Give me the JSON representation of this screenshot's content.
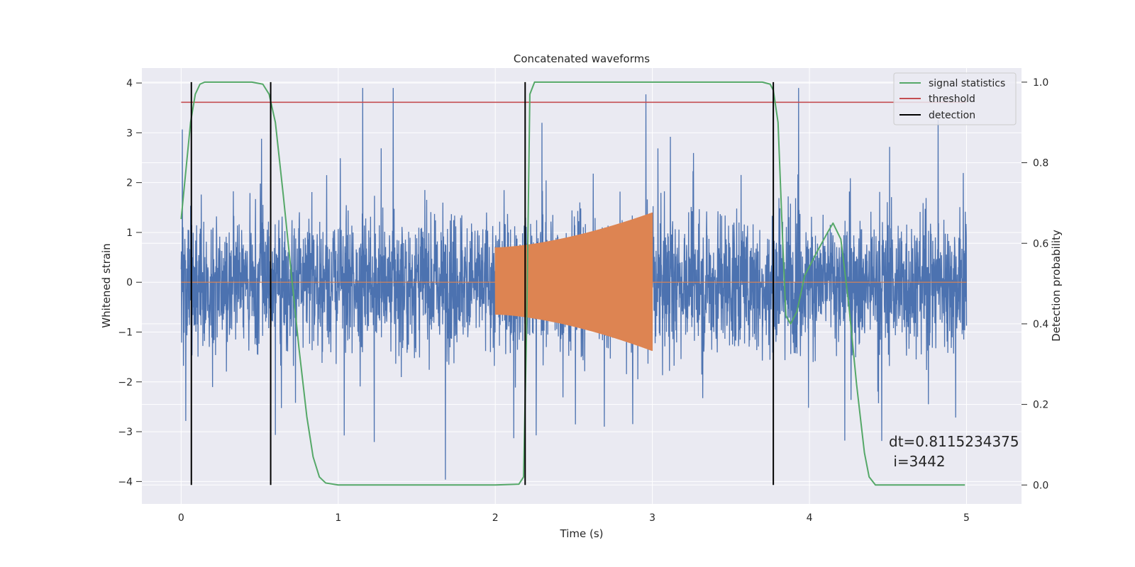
{
  "chart_data": {
    "type": "line",
    "title": "Concatenated waveforms",
    "xlabel": "Time (s)",
    "ylabel": "Whitened strain",
    "ylabel_right": "Detection probability",
    "xlim": [
      -0.25,
      5.35
    ],
    "ylim": [
      -4.45,
      4.3
    ],
    "ylim_right": [
      -0.047,
      1.035
    ],
    "xticks": [
      0,
      1,
      2,
      3,
      4,
      5
    ],
    "xtick_labels": [
      "0",
      "1",
      "2",
      "3",
      "4",
      "5"
    ],
    "yticks": [
      -4,
      -3,
      -2,
      -1,
      0,
      1,
      2,
      3,
      4
    ],
    "ytick_labels": [
      "−4",
      "−3",
      "−2",
      "−1",
      "0",
      "1",
      "2",
      "3",
      "4"
    ],
    "yticks_right": [
      0.0,
      0.2,
      0.4,
      0.6,
      0.8,
      1.0
    ],
    "ytick_labels_right": [
      "0.0",
      "0.2",
      "0.4",
      "0.6",
      "0.8",
      "1.0"
    ],
    "grid": true,
    "legend_position": "top-right",
    "colors": {
      "background": "#eaeaf2",
      "grid": "#ffffff",
      "strain": "#4c72b0",
      "template": "#dd8452",
      "signal_statistics": "#55a868",
      "threshold": "#c44e52",
      "detection": "#000000"
    },
    "series": [
      {
        "name": "",
        "axis": "left",
        "x_range": [
          0,
          5
        ],
        "envelope_typical": [
          -1.5,
          1.3
        ],
        "envelope_max": [
          -4.15,
          3.9
        ]
      },
      {
        "name": "",
        "axis": "left",
        "x_range": [
          0,
          5
        ],
        "chirp": {
          "x_start": 2.0,
          "x_end": 3.0,
          "amplitude_start_upper": 0.7,
          "amplitude_start_lower": -0.65,
          "amplitude_end_upper": 1.4,
          "amplitude_end_lower": -1.38
        }
      },
      {
        "name": "signal statistics",
        "axis": "right",
        "x": [
          0,
          0.03,
          0.06,
          0.09,
          0.12,
          0.15,
          0.2,
          0.3,
          0.45,
          0.52,
          0.56,
          0.6,
          0.65,
          0.7,
          0.75,
          0.8,
          0.84,
          0.88,
          0.92,
          1.0,
          1.5,
          2.0,
          2.15,
          2.18,
          2.2,
          2.22,
          2.25,
          2.3,
          2.5,
          3.0,
          3.5,
          3.7,
          3.75,
          3.77,
          3.8,
          3.83,
          3.85,
          3.88,
          3.92,
          3.97,
          4.05,
          4.12,
          4.15,
          4.2,
          4.25,
          4.3,
          4.35,
          4.38,
          4.42,
          4.5,
          4.99
        ],
        "y": [
          0.66,
          0.78,
          0.9,
          0.97,
          0.995,
          1.0,
          1.0,
          1.0,
          1.0,
          0.995,
          0.97,
          0.9,
          0.72,
          0.53,
          0.34,
          0.17,
          0.07,
          0.02,
          0.005,
          0.0,
          0.0,
          0.0,
          0.002,
          0.02,
          0.4,
          0.97,
          1.0,
          1.0,
          1.0,
          1.0,
          1.0,
          1.0,
          0.995,
          0.98,
          0.9,
          0.6,
          0.42,
          0.4,
          0.43,
          0.52,
          0.58,
          0.63,
          0.65,
          0.61,
          0.45,
          0.25,
          0.08,
          0.02,
          0.0,
          0.0,
          0.0
        ]
      },
      {
        "name": "threshold",
        "axis": "right",
        "x": [
          0,
          5
        ],
        "y": [
          0.95,
          0.95
        ]
      }
    ],
    "detections": {
      "name": "detection",
      "x": [
        0.065,
        0.57,
        2.19,
        3.77
      ],
      "y_range_right": [
        0.0,
        1.0
      ]
    },
    "legend": [
      "signal statistics",
      "threshold",
      "detection"
    ],
    "annotation": {
      "line1": "dt=0.8115234375",
      "line2": " i=3442"
    }
  }
}
